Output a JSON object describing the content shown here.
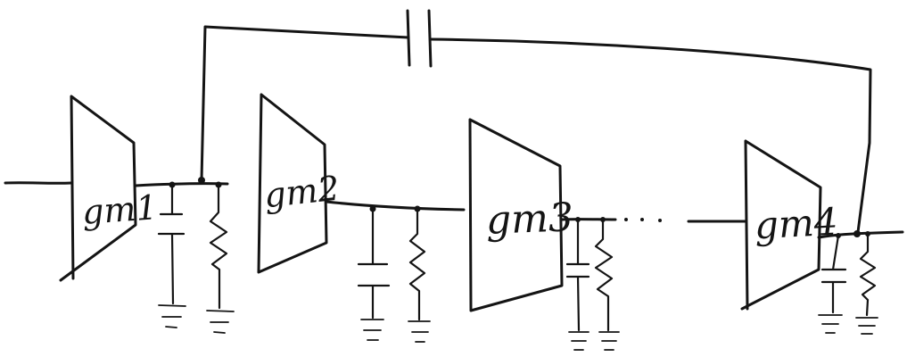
{
  "diagram": {
    "stages": [
      {
        "name": "gm1"
      },
      {
        "name": "gm2"
      },
      {
        "name": "gm3"
      },
      {
        "name": "gm4"
      }
    ]
  }
}
